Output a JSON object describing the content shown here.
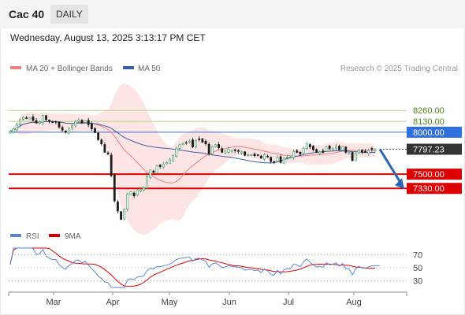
{
  "header": {
    "title": "Cac 40",
    "timeframe": "DAILY"
  },
  "datetime": "Wednesday, August 13, 2025 3:13:17 PM CET",
  "legend": {
    "ma20": "MA 20 + Bollinger Bands",
    "ma50": "MA 50",
    "credit": "Research © 2025 Trading Central"
  },
  "rsi_legend": {
    "rsi": "RSI",
    "ma": "9MA"
  },
  "colors": {
    "ma20": "#f08080",
    "band_fill": "#fde0e0",
    "ma50": "#3a5fa8",
    "up": "#2e9e5e",
    "down": "#1a1a1a",
    "resistance_green": "#b5d98a",
    "resistance_blue": "#2f6fe0",
    "support_red": "#dd0000",
    "current_price": "#333333",
    "arrow": "#2d62b3",
    "rsi": "#5b86d6",
    "rsi_ma": "#dd0000"
  },
  "chart_data": [
    {
      "type": "candlestick",
      "title": "Cac 40",
      "x_ticks": [
        "Mar",
        "Apr",
        "May",
        "Jun",
        "Jul",
        "Aug"
      ],
      "ylim": [
        6900,
        8450
      ],
      "levels": [
        {
          "value": 8260.0,
          "label": "8260.00",
          "kind": "resistance",
          "color": "#b5d98a"
        },
        {
          "value": 8130.0,
          "label": "8130.00",
          "kind": "resistance",
          "color": "#b5d98a"
        },
        {
          "value": 8000.0,
          "label": "8000.00",
          "kind": "resistance",
          "color": "#2f6fe0"
        },
        {
          "value": 7797.23,
          "label": "7797.23",
          "kind": "current",
          "color": "#333333"
        },
        {
          "value": 7500.0,
          "label": "7500.00",
          "kind": "support",
          "color": "#dd0000"
        },
        {
          "value": 7330.0,
          "label": "7330.00",
          "kind": "support",
          "color": "#dd0000"
        }
      ],
      "forecast": {
        "from": 7797.23,
        "to": 7330.0
      },
      "close": [
        8010,
        8040,
        8090,
        8150,
        8180,
        8165,
        8170,
        8140,
        8110,
        8120,
        8200,
        8150,
        8130,
        8115,
        8120,
        8060,
        8025,
        8000,
        8050,
        8080,
        8130,
        8145,
        8110,
        8135,
        8090,
        8040,
        7995,
        7910,
        7860,
        7760,
        7740,
        7480,
        7180,
        7060,
        6960,
        7070,
        7265,
        7290,
        7240,
        7310,
        7320,
        7340,
        7470,
        7550,
        7520,
        7600,
        7590,
        7620,
        7640,
        7670,
        7725,
        7810,
        7850,
        7865,
        7870,
        7895,
        7825,
        7900,
        7910,
        7880,
        7860,
        7745,
        7825,
        7855,
        7815,
        7760,
        7775,
        7800,
        7785,
        7780,
        7770,
        7765,
        7725,
        7735,
        7735,
        7720,
        7725,
        7690,
        7730,
        7705,
        7650,
        7640,
        7695,
        7640,
        7690,
        7705,
        7705,
        7770,
        7760,
        7740,
        7810,
        7865,
        7825,
        7790,
        7760,
        7770,
        7760,
        7825,
        7800,
        7810,
        7830,
        7790,
        7830,
        7760,
        7760,
        7660,
        7745,
        7790,
        7760,
        7760,
        7780,
        7795,
        7797
      ]
    },
    {
      "type": "line",
      "title": "RSI",
      "series": [
        {
          "name": "RSI"
        },
        {
          "name": "9MA"
        }
      ],
      "ylim": [
        20,
        80
      ],
      "y_ticks": [
        70,
        50,
        30
      ]
    }
  ]
}
